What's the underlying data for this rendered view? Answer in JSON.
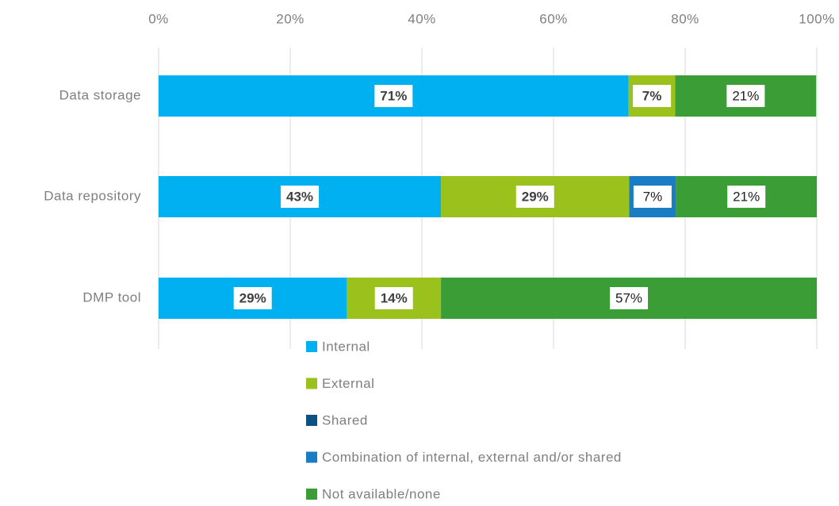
{
  "chart_data": {
    "type": "stacked_barh",
    "categories": [
      "Data storage",
      "Data repository",
      "DMP tool"
    ],
    "series": [
      {
        "name": "Internal",
        "color": "#00b0f0",
        "values": [
          71.4,
          42.9,
          28.6
        ],
        "value_labels": [
          "71%",
          "43%",
          "29%"
        ]
      },
      {
        "name": "External",
        "color": "#9bc21c",
        "values": [
          7.1,
          28.6,
          14.3
        ],
        "value_labels": [
          "7%",
          "29%",
          "14%"
        ]
      },
      {
        "name": "Shared",
        "color": "#0a5281",
        "values": [
          null,
          null,
          null
        ],
        "value_labels": [
          null,
          null,
          null
        ]
      },
      {
        "name": "Combination of internal, external and/or shared",
        "color": "#1a7dc4",
        "values": [
          null,
          7.1,
          null
        ],
        "value_labels": [
          null,
          "7%",
          null
        ]
      },
      {
        "name": "Not available/none",
        "color": "#3a9d35",
        "values": [
          21.4,
          21.4,
          57.1
        ],
        "value_labels": [
          "21%",
          "21%",
          "57%"
        ]
      }
    ],
    "xlim": [
      0,
      100
    ],
    "xticks": [
      {
        "value": 0,
        "label": "0%"
      },
      {
        "value": 20,
        "label": "20%"
      },
      {
        "value": 40,
        "label": "40%"
      },
      {
        "value": 60,
        "label": "60%"
      },
      {
        "value": 80,
        "label": "80%"
      },
      {
        "value": 100,
        "label": "100%"
      }
    ],
    "grid": true,
    "legend": "bottom"
  }
}
